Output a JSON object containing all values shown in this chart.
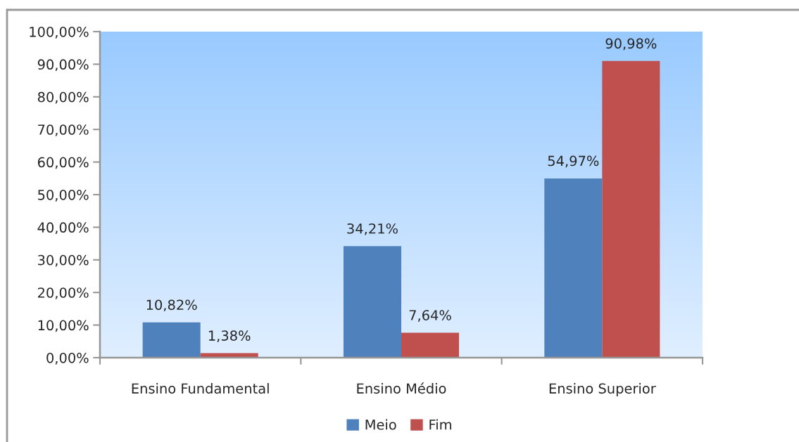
{
  "chart_data": {
    "type": "bar",
    "categories": [
      "Ensino Fundamental",
      "Ensino Médio",
      "Ensino Superior"
    ],
    "series": [
      {
        "name": "Meio",
        "color": "#4f81bd",
        "values": [
          10.82,
          34.21,
          54.97
        ],
        "value_labels": [
          "10,82%",
          "34,21%",
          "54,97%"
        ]
      },
      {
        "name": "Fim",
        "color": "#c0504d",
        "values": [
          1.38,
          7.64,
          90.98
        ],
        "value_labels": [
          "1,38%",
          "7,64%",
          "90,98%"
        ]
      }
    ],
    "ylim": [
      0,
      100
    ],
    "yticks": [
      {
        "value": 0,
        "label": "0,00%"
      },
      {
        "value": 10,
        "label": "10,00%"
      },
      {
        "value": 20,
        "label": "20,00%"
      },
      {
        "value": 30,
        "label": "30,00%"
      },
      {
        "value": 40,
        "label": "40,00%"
      },
      {
        "value": 50,
        "label": "50,00%"
      },
      {
        "value": 60,
        "label": "60,00%"
      },
      {
        "value": 70,
        "label": "70,00%"
      },
      {
        "value": 80,
        "label": "80,00%"
      },
      {
        "value": 90,
        "label": "90,00%"
      },
      {
        "value": 100,
        "label": "100,00%"
      }
    ],
    "grid": false,
    "legend": "bottom"
  }
}
